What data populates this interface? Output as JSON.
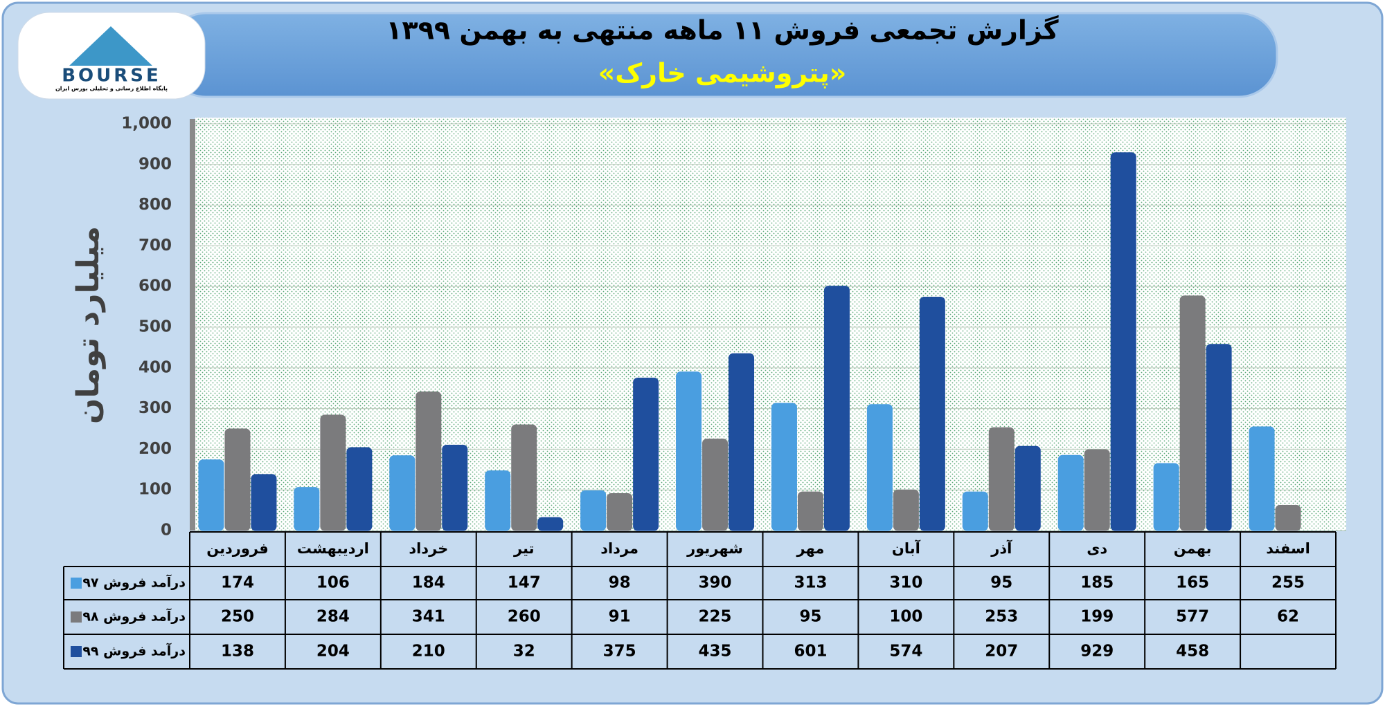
{
  "chart_data": {
    "type": "bar",
    "title": "گزارش تجمعی فروش ۱۱ ماهه منتهی به بهمن ۱۳۹۹",
    "subtitle": "«پتروشیمی خارک»",
    "y_label": "میلیارد تومان",
    "logo": {
      "name": "BOURSE",
      "caption": "پایگاه اطلاع رسانی و تحلیلی بورس ایران"
    },
    "categories": [
      "فروردین",
      "اردیبهشت",
      "خرداد",
      "تیر",
      "مرداد",
      "شهریور",
      "مهر",
      "آبان",
      "آذر",
      "دی",
      "بهمن",
      "اسفند"
    ],
    "series": [
      {
        "name": "درآمد فروش ۹۷",
        "color": "#4a9ee0",
        "values": [
          174,
          106,
          184,
          147,
          98,
          390,
          313,
          310,
          95,
          185,
          165,
          255
        ]
      },
      {
        "name": "درآمد فروش ۹۸",
        "color": "#7b7b7d",
        "values": [
          250,
          284,
          341,
          260,
          91,
          225,
          95,
          100,
          253,
          199,
          577,
          62
        ]
      },
      {
        "name": "درآمد فروش ۹۹",
        "color": "#1f4f9e",
        "values": [
          138,
          204,
          210,
          32,
          375,
          435,
          601,
          574,
          207,
          929,
          458,
          null
        ]
      }
    ],
    "ylim": [
      0,
      1000
    ],
    "yticks": [
      0,
      100,
      200,
      300,
      400,
      500,
      600,
      700,
      800,
      900,
      {
        "value": 1000,
        "label": "1,000"
      }
    ],
    "grid": true
  }
}
